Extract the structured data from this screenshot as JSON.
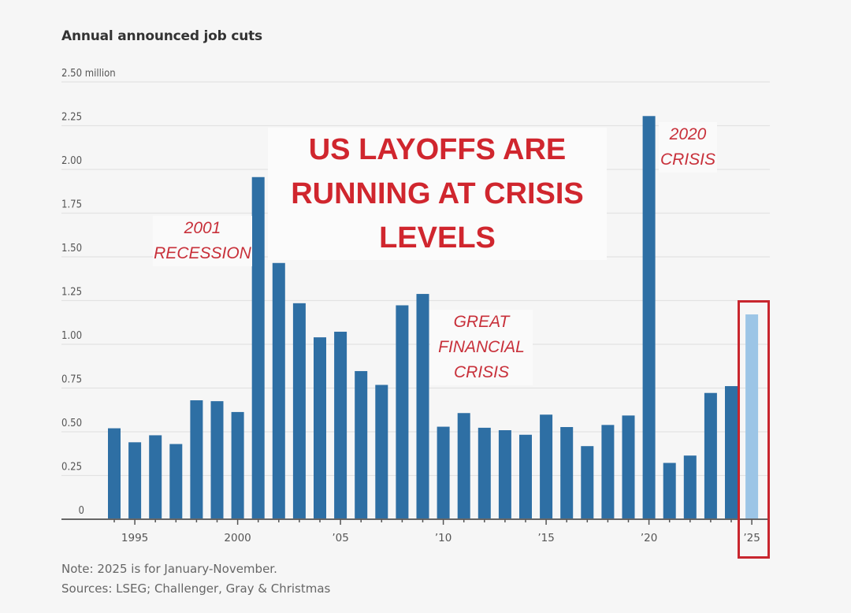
{
  "chart_data": {
    "type": "bar",
    "title": "Annual announced job cuts",
    "ylabel": "",
    "xlabel": "",
    "y_unit_label": "2.50 million",
    "ylim": [
      0,
      2.5
    ],
    "y_ticks": [
      0,
      0.25,
      0.5,
      0.75,
      1.0,
      1.25,
      1.5,
      1.75,
      2.0,
      2.25,
      2.5
    ],
    "y_tick_labels": [
      "0",
      "0.25",
      "0.50",
      "0.75",
      "1.00",
      "1.25",
      "1.50",
      "1.75",
      "2.00",
      "2.25",
      "2.50 million"
    ],
    "grid": true,
    "x": [
      1994,
      1995,
      1996,
      1997,
      1998,
      1999,
      2000,
      2001,
      2002,
      2003,
      2004,
      2005,
      2006,
      2007,
      2008,
      2009,
      2010,
      2011,
      2012,
      2013,
      2014,
      2015,
      2016,
      2017,
      2018,
      2019,
      2020,
      2021,
      2022,
      2023,
      2024,
      2025
    ],
    "values": [
      0.52,
      0.44,
      0.48,
      0.43,
      0.68,
      0.675,
      0.613,
      1.956,
      1.465,
      1.235,
      1.04,
      1.072,
      0.847,
      0.768,
      1.223,
      1.288,
      0.529,
      0.607,
      0.523,
      0.509,
      0.483,
      0.598,
      0.527,
      0.418,
      0.539,
      0.593,
      2.305,
      0.322,
      0.364,
      0.722,
      0.761,
      1.171
    ],
    "x_tick_labels": [
      {
        "year": 1995,
        "label": "1995"
      },
      {
        "year": 2000,
        "label": "2000"
      },
      {
        "year": 2005,
        "label": "’05"
      },
      {
        "year": 2010,
        "label": "’10"
      },
      {
        "year": 2015,
        "label": "’15"
      },
      {
        "year": 2020,
        "label": "’20"
      },
      {
        "year": 2025,
        "label": "’25"
      }
    ],
    "highlighted_year": 2025,
    "colors": {
      "bar": "#2e6fa4",
      "highlight_bar": "#9cc5e6",
      "annotation": "#c8303a",
      "highlight_box": "#c8262e"
    }
  },
  "headline": {
    "lines": [
      "US LAYOFFS ARE",
      "RUNNING AT CRISIS",
      "LEVELS"
    ]
  },
  "annotations": {
    "recession_2001": [
      "2001",
      "RECESSION"
    ],
    "gfc": [
      "GREAT",
      "FINANCIAL",
      "CRISIS"
    ],
    "crisis_2020": [
      "2020",
      "CRISIS"
    ]
  },
  "footer": {
    "note": "Note: 2025 is for January-November.",
    "sources": "Sources: LSEG; Challenger, Gray & Christmas"
  }
}
